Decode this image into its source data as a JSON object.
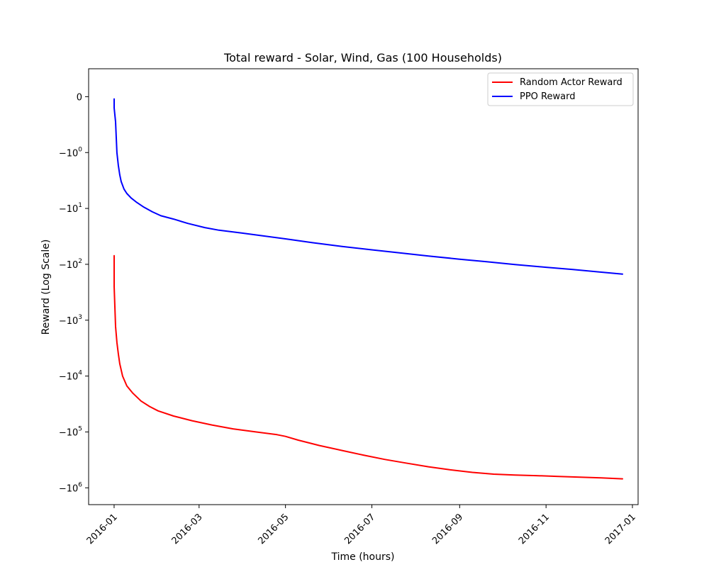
{
  "chart_data": {
    "type": "line",
    "title": "Total reward - Solar, Wind, Gas (100 Households)",
    "xlabel": "Time (hours)",
    "ylabel": "Reward (Log Scale)",
    "yscale": "symlog",
    "ylim": [
      -2000000,
      0.5
    ],
    "xlim": [
      "2015-12-14",
      "2017-01-05"
    ],
    "grid": false,
    "legend_position": "top-right",
    "x_ticks": [
      "2016-01",
      "2016-03",
      "2016-05",
      "2016-07",
      "2016-09",
      "2016-11",
      "2017-01"
    ],
    "y_ticks": [
      {
        "value": 0,
        "label": "0",
        "base": "",
        "exp": ""
      },
      {
        "value": -1,
        "label": "",
        "base": "−10",
        "exp": "0"
      },
      {
        "value": -10,
        "label": "",
        "base": "−10",
        "exp": "1"
      },
      {
        "value": -100,
        "label": "",
        "base": "−10",
        "exp": "2"
      },
      {
        "value": -1000,
        "label": "",
        "base": "−10",
        "exp": "3"
      },
      {
        "value": -10000,
        "label": "",
        "base": "−10",
        "exp": "4"
      },
      {
        "value": -100000,
        "label": "",
        "base": "−10",
        "exp": "5"
      },
      {
        "value": -1000000,
        "label": "",
        "base": "−10",
        "exp": "6"
      }
    ],
    "series": [
      {
        "name": "Random Actor Reward",
        "color": "#ff0000",
        "points": [
          [
            "2016-01-01",
            -70
          ],
          [
            "2016-01-01",
            -180
          ],
          [
            "2016-01-01",
            -250
          ],
          [
            "2016-01-02",
            -1300
          ],
          [
            "2016-01-03",
            -2500
          ],
          [
            "2016-01-04",
            -4000
          ],
          [
            "2016-01-05",
            -6000
          ],
          [
            "2016-01-07",
            -10000
          ],
          [
            "2016-01-10",
            -15000
          ],
          [
            "2016-01-14",
            -20000
          ],
          [
            "2016-01-20",
            -28000
          ],
          [
            "2016-01-26",
            -35000
          ],
          [
            "2016-02-01",
            -42000
          ],
          [
            "2016-02-12",
            -52000
          ],
          [
            "2016-02-25",
            -63000
          ],
          [
            "2016-03-10",
            -75000
          ],
          [
            "2016-03-25",
            -88000
          ],
          [
            "2016-04-10",
            -100000
          ],
          [
            "2016-04-25",
            -112000
          ],
          [
            "2016-05-01",
            -120000
          ],
          [
            "2016-05-10",
            -140000
          ],
          [
            "2016-05-25",
            -175000
          ],
          [
            "2016-06-10",
            -215000
          ],
          [
            "2016-06-25",
            -260000
          ],
          [
            "2016-07-10",
            -310000
          ],
          [
            "2016-07-25",
            -360000
          ],
          [
            "2016-08-10",
            -420000
          ],
          [
            "2016-08-25",
            -475000
          ],
          [
            "2016-09-10",
            -530000
          ],
          [
            "2016-09-25",
            -570000
          ],
          [
            "2016-10-10",
            -590000
          ],
          [
            "2016-10-25",
            -605000
          ],
          [
            "2016-11-10",
            -625000
          ],
          [
            "2016-11-25",
            -645000
          ],
          [
            "2016-12-10",
            -665000
          ],
          [
            "2016-12-25",
            -690000
          ]
        ]
      },
      {
        "name": "PPO Reward",
        "color": "#0000ff",
        "points": [
          [
            "2016-01-01",
            -0.04
          ],
          [
            "2016-01-01",
            -0.2
          ],
          [
            "2016-01-02",
            -0.45
          ],
          [
            "2016-01-03",
            -1.0
          ],
          [
            "2016-01-04",
            -1.7
          ],
          [
            "2016-01-05",
            -2.5
          ],
          [
            "2016-01-06",
            -3.3
          ],
          [
            "2016-01-08",
            -4.5
          ],
          [
            "2016-01-10",
            -5.4
          ],
          [
            "2016-01-13",
            -6.5
          ],
          [
            "2016-01-17",
            -7.8
          ],
          [
            "2016-01-22",
            -9.5
          ],
          [
            "2016-01-28",
            -11.5
          ],
          [
            "2016-02-03",
            -13.5
          ],
          [
            "2016-02-12",
            -15.5
          ],
          [
            "2016-02-22",
            -18.5
          ],
          [
            "2016-03-05",
            -22.0
          ],
          [
            "2016-03-15",
            -24.5
          ],
          [
            "2016-03-31",
            -27.5
          ],
          [
            "2016-04-15",
            -31.0
          ],
          [
            "2016-05-01",
            -35.0
          ],
          [
            "2016-05-20",
            -41.0
          ],
          [
            "2016-06-10",
            -48.0
          ],
          [
            "2016-07-01",
            -55.0
          ],
          [
            "2016-07-20",
            -62.0
          ],
          [
            "2016-08-10",
            -71.0
          ],
          [
            "2016-09-01",
            -81.0
          ],
          [
            "2016-09-20",
            -90.0
          ],
          [
            "2016-10-10",
            -101.0
          ],
          [
            "2016-11-01",
            -113.0
          ],
          [
            "2016-11-20",
            -124.0
          ],
          [
            "2016-12-10",
            -138.0
          ],
          [
            "2016-12-25",
            -150.0
          ]
        ]
      }
    ]
  }
}
